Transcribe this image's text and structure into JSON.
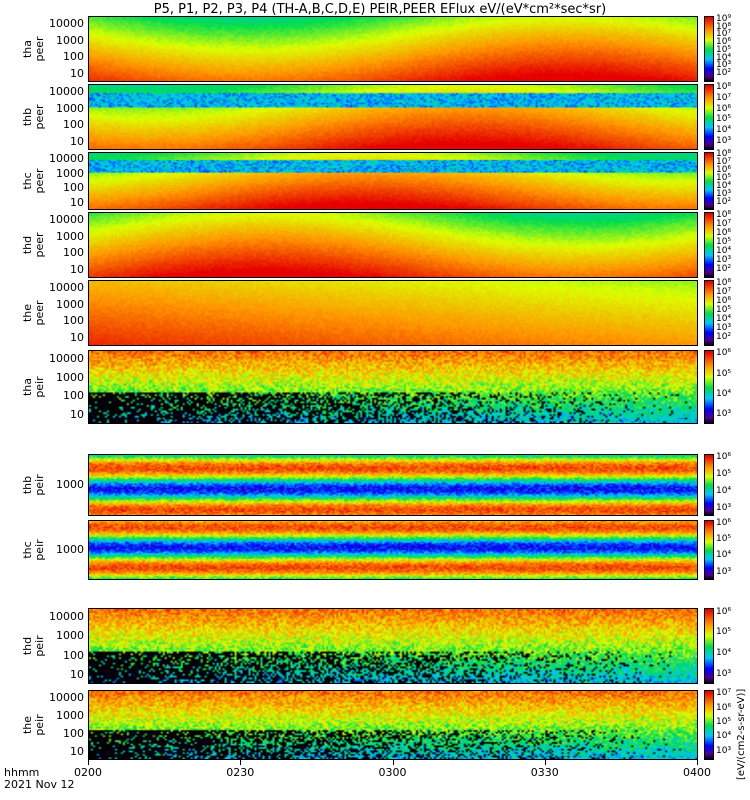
{
  "title": "P5, P1, P2, P3, P4 (TH-A,B,C,D,E) PEIR,PEER EFlux eV/(eV*cm²*sec*sr)",
  "x_axis": {
    "label_line1": "hhmm",
    "label_line2": "2021 Nov 12",
    "ticks": [
      "0200",
      "0230",
      "0300",
      "0330",
      "0400"
    ]
  },
  "colorbar_label": "[eV/(cm2-s-sr-eV)]",
  "chart_data": {
    "type": "heatmap",
    "title": "P5, P1, P2, P3, P4 (TH-A,B,C,D,E) PEIR,PEER EFlux eV/(eV*cm²*sec*sr)",
    "xlabel": "hhmm",
    "xlim": [
      "0200",
      "0400"
    ],
    "y_scale": "log",
    "panels": [
      {
        "ylabel_1": "tha",
        "ylabel_2": "peer",
        "yticks": [
          "10000",
          "1000",
          "100",
          "10"
        ],
        "cbar_ticks": [
          "10⁹",
          "10⁸",
          "10⁷",
          "10⁶",
          "10⁵",
          "10⁴",
          "10³",
          "10²"
        ]
      },
      {
        "ylabel_1": "thb",
        "ylabel_2": "peer",
        "yticks": [
          "10000",
          "1000",
          "100",
          "10"
        ],
        "cbar_ticks": [
          "10⁸",
          "10⁷",
          "10⁶",
          "10⁵",
          "10⁴",
          "10³"
        ]
      },
      {
        "ylabel_1": "thc",
        "ylabel_2": "peer",
        "yticks": [
          "10000",
          "1000",
          "100",
          "10"
        ],
        "cbar_ticks": [
          "10⁸",
          "10⁷",
          "10⁶",
          "10⁵",
          "10⁴",
          "10³",
          "10²"
        ]
      },
      {
        "ylabel_1": "thd",
        "ylabel_2": "peer",
        "yticks": [
          "10000",
          "1000",
          "100",
          "10"
        ],
        "cbar_ticks": [
          "10⁸",
          "10⁷",
          "10⁶",
          "10⁵",
          "10⁴",
          "10³",
          "10²"
        ]
      },
      {
        "ylabel_1": "the",
        "ylabel_2": "peer",
        "yticks": [
          "10000",
          "1000",
          "100",
          "10"
        ],
        "cbar_ticks": [
          "10⁸",
          "10⁷",
          "10⁶",
          "10⁵",
          "10⁴",
          "10³",
          "10²"
        ]
      },
      {
        "ylabel_1": "tha",
        "ylabel_2": "peir",
        "yticks": [
          "10000",
          "1000",
          "100",
          "10"
        ],
        "cbar_ticks": [
          "10⁶",
          "10⁵",
          "10⁴",
          "10³"
        ]
      },
      {
        "ylabel_1": "thb",
        "ylabel_2": "peir",
        "yticks": [
          "1000"
        ],
        "cbar_ticks": [
          "10⁶",
          "10⁵",
          "10⁴",
          "10³"
        ]
      },
      {
        "ylabel_1": "thc",
        "ylabel_2": "peir",
        "yticks": [
          "1000"
        ],
        "cbar_ticks": [
          "10⁶",
          "10⁵",
          "10⁴",
          "10³"
        ]
      },
      {
        "ylabel_1": "thd",
        "ylabel_2": "peir",
        "yticks": [
          "10000",
          "1000",
          "100",
          "10"
        ],
        "cbar_ticks": [
          "10⁶",
          "10⁵",
          "10⁴",
          "10³"
        ]
      },
      {
        "ylabel_1": "the",
        "ylabel_2": "peir",
        "yticks": [
          "10000",
          "1000",
          "100",
          "10"
        ],
        "cbar_ticks": [
          "10⁷",
          "10⁶",
          "10⁵",
          "10⁴",
          "10³"
        ]
      }
    ]
  }
}
